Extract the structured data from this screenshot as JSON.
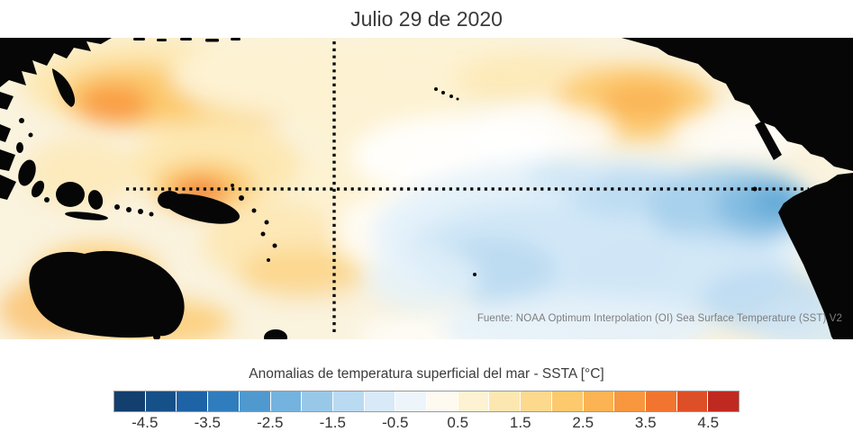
{
  "title": "Julio 29 de 2020",
  "map": {
    "source": "Fuente: NOAA Optimum Interpolation (OI) Sea Surface Temperature (SST) V2"
  },
  "legend": {
    "title": "Anomalias de temperatura superficial del mar - SSTA  [°C]",
    "min": -5,
    "max": 5,
    "tick_labels": [
      "-4.5",
      "-3.5",
      "-2.5",
      "-1.5",
      "-0.5",
      "0.5",
      "1.5",
      "2.5",
      "3.5",
      "4.5"
    ],
    "colors": [
      "#123f6e",
      "#155089",
      "#1d63a6",
      "#2f7dbd",
      "#4f99cf",
      "#74b3de",
      "#98c8e8",
      "#badaf1",
      "#d8e9f7",
      "#edf5fb",
      "#fefaf0",
      "#fdf2d2",
      "#fde7b1",
      "#fdd98e",
      "#fcc96d",
      "#fbb353",
      "#f8973e",
      "#f1752f",
      "#dd4f26",
      "#c0291f"
    ]
  },
  "chart_data": {
    "type": "heatmap",
    "title": "Julio 29 de 2020",
    "variable": "Anomalias de temperatura superficial del mar - SSTA [°C]",
    "source": "Fuente: NOAA Optimum Interpolation (OI) Sea Surface Temperature (SST) V2",
    "colorbar": {
      "range": [
        -5,
        5
      ],
      "interval": 0.5,
      "tick_labels": [
        -4.5,
        -3.5,
        -2.5,
        -1.5,
        -0.5,
        0.5,
        1.5,
        2.5,
        3.5,
        4.5
      ],
      "colors": [
        "#123f6e",
        "#155089",
        "#1d63a6",
        "#2f7dbd",
        "#4f99cf",
        "#74b3de",
        "#98c8e8",
        "#badaf1",
        "#d8e9f7",
        "#edf5fb",
        "#fefaf0",
        "#fdf2d2",
        "#fde7b1",
        "#fdd98e",
        "#fcc96d",
        "#fbb353",
        "#f8973e",
        "#f1752f",
        "#dd4f26",
        "#c0291f"
      ],
      "legend_position": "bottom"
    },
    "reference_lines": [
      {
        "orientation": "horizontal",
        "style": "dotted"
      },
      {
        "orientation": "vertical",
        "style": "dotted"
      }
    ],
    "anomaly_features": [
      {
        "area": "northwest-pacific",
        "anomaly_c": 2.0
      },
      {
        "area": "west-equatorial-pacific-near-new-guinea",
        "anomaly_c": 2.5
      },
      {
        "area": "north-central-pacific",
        "anomaly_c": 0.5
      },
      {
        "area": "northeast-pacific",
        "anomaly_c": 1.5
      },
      {
        "area": "coral-sea-southwest-pacific",
        "anomaly_c": 1.0
      },
      {
        "area": "central-equatorial-pacific",
        "anomaly_c": -0.5
      },
      {
        "area": "east-equatorial-pacific",
        "anomaly_c": -1.0
      },
      {
        "area": "peru-coast",
        "anomaly_c": -2.0
      },
      {
        "area": "south-central-pacific",
        "anomaly_c": -0.5
      }
    ]
  }
}
